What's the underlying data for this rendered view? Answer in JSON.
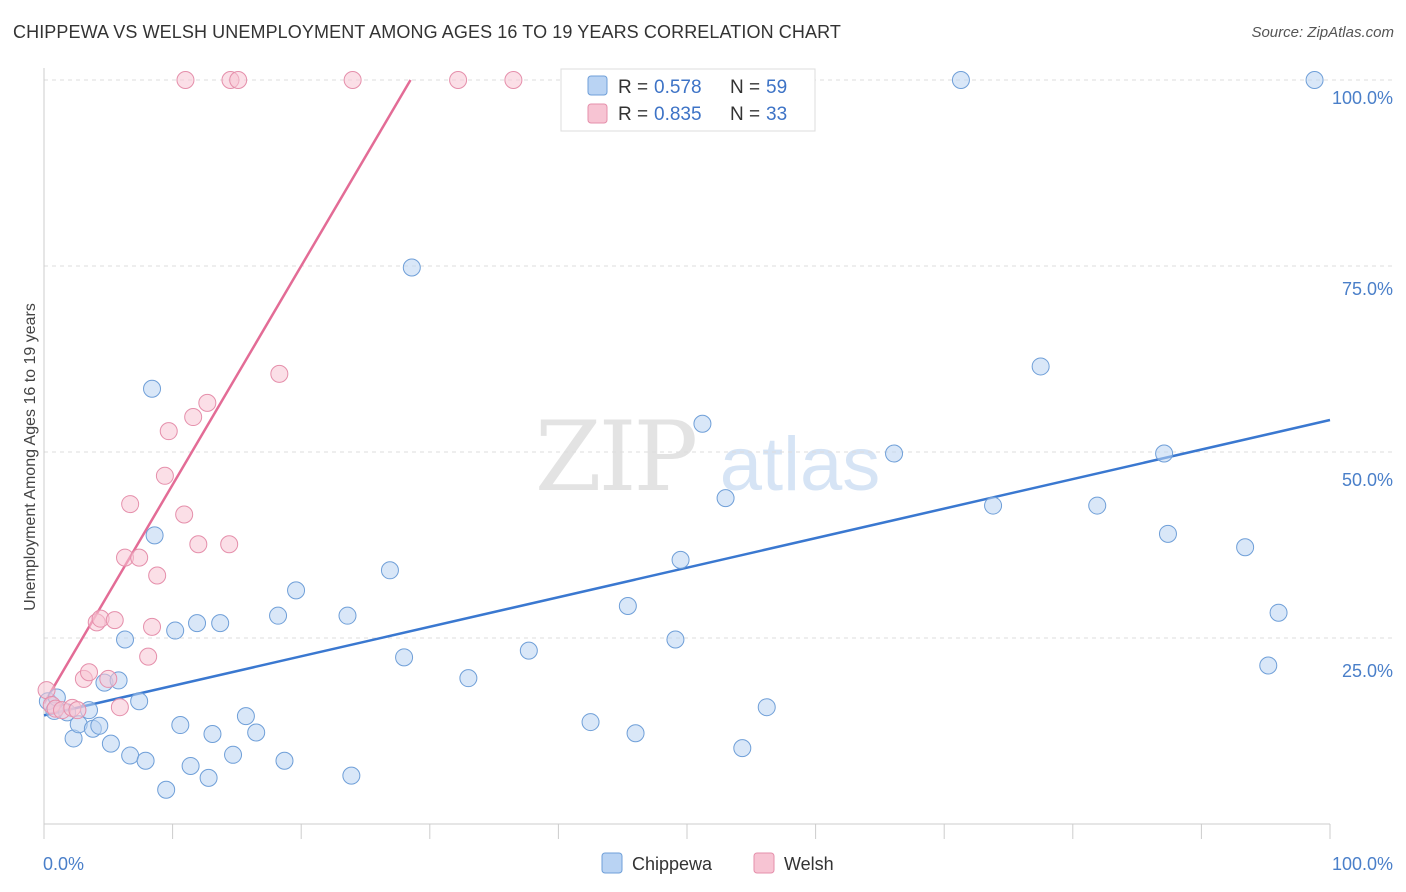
{
  "title": "CHIPPEWA VS WELSH UNEMPLOYMENT AMONG AGES 16 TO 19 YEARS CORRELATION CHART",
  "source": "Source: ZipAtlas.com",
  "colors": {
    "chippewa_fill": "#b9d3f3",
    "chippewa_stroke": "#6f9fd8",
    "chippewa_line": "#3a78d0",
    "welsh_fill": "#f7c4d3",
    "welsh_stroke": "#e58fab",
    "welsh_line": "#e36c96",
    "grid": "#dddddd",
    "axis_text": "#4a7fc9"
  },
  "chart_data": {
    "type": "scatter",
    "xlabel": "",
    "ylabel": "Unemployment Among Ages 16 to 19 years",
    "xlim": [
      0,
      100
    ],
    "ylim": [
      0,
      100
    ],
    "x_tick_labels": [
      "0.0%",
      "100.0%"
    ],
    "y_ticks": [
      25,
      50,
      75,
      100
    ],
    "y_tick_labels": [
      "25.0%",
      "50.0%",
      "75.0%",
      "100.0%"
    ],
    "legend": [
      {
        "name": "Chippewa",
        "r_label": "R =",
        "r": "0.578",
        "n_label": "N =",
        "n": "59"
      },
      {
        "name": "Welsh",
        "r_label": "R =",
        "r": "0.835",
        "n_label": "N =",
        "n": "33"
      }
    ],
    "watermark": "ZIPatlas",
    "series": [
      {
        "name": "Chippewa",
        "trend": [
          [
            0,
            14.6
          ],
          [
            100,
            54.3
          ]
        ],
        "points": [
          [
            0.3,
            16.5
          ],
          [
            0.8,
            15.2
          ],
          [
            1.0,
            17.0
          ],
          [
            1.8,
            15.0
          ],
          [
            2.3,
            11.5
          ],
          [
            2.7,
            13.4
          ],
          [
            3.5,
            15.3
          ],
          [
            3.8,
            12.8
          ],
          [
            4.3,
            13.2
          ],
          [
            4.7,
            19.0
          ],
          [
            5.2,
            10.8
          ],
          [
            5.8,
            19.3
          ],
          [
            6.3,
            24.8
          ],
          [
            6.7,
            9.2
          ],
          [
            7.4,
            16.5
          ],
          [
            7.9,
            8.5
          ],
          [
            8.4,
            58.5
          ],
          [
            8.6,
            38.8
          ],
          [
            9.5,
            4.6
          ],
          [
            10.2,
            26.0
          ],
          [
            10.6,
            13.3
          ],
          [
            11.4,
            7.8
          ],
          [
            11.9,
            27.0
          ],
          [
            12.8,
            6.2
          ],
          [
            13.1,
            12.1
          ],
          [
            13.7,
            27.0
          ],
          [
            14.7,
            9.3
          ],
          [
            15.7,
            14.5
          ],
          [
            16.5,
            12.3
          ],
          [
            18.2,
            28.0
          ],
          [
            18.7,
            8.5
          ],
          [
            19.6,
            31.4
          ],
          [
            23.6,
            28.0
          ],
          [
            23.9,
            6.5
          ],
          [
            26.9,
            34.1
          ],
          [
            28.0,
            22.4
          ],
          [
            28.6,
            74.8
          ],
          [
            33.0,
            19.6
          ],
          [
            37.7,
            23.3
          ],
          [
            42.5,
            13.7
          ],
          [
            45.4,
            29.3
          ],
          [
            46.0,
            12.2
          ],
          [
            49.1,
            24.8
          ],
          [
            49.5,
            35.5
          ],
          [
            51.2,
            53.8
          ],
          [
            53.0,
            43.8
          ],
          [
            54.3,
            10.2
          ],
          [
            56.2,
            15.7
          ],
          [
            66.1,
            49.8
          ],
          [
            71.3,
            100.0
          ],
          [
            73.8,
            42.8
          ],
          [
            77.5,
            61.5
          ],
          [
            81.9,
            42.8
          ],
          [
            87.1,
            49.8
          ],
          [
            87.4,
            39.0
          ],
          [
            93.4,
            37.2
          ],
          [
            95.2,
            21.3
          ],
          [
            96.0,
            28.4
          ],
          [
            98.8,
            100.0
          ]
        ]
      },
      {
        "name": "Welsh",
        "trend": [
          [
            0,
            16.2
          ],
          [
            28.5,
            100.0
          ]
        ],
        "points": [
          [
            0.2,
            18.0
          ],
          [
            0.6,
            16.0
          ],
          [
            0.9,
            15.5
          ],
          [
            1.4,
            15.3
          ],
          [
            2.2,
            15.6
          ],
          [
            2.6,
            15.3
          ],
          [
            3.1,
            19.5
          ],
          [
            3.5,
            20.4
          ],
          [
            4.1,
            27.1
          ],
          [
            4.4,
            27.6
          ],
          [
            5.0,
            19.5
          ],
          [
            5.5,
            27.4
          ],
          [
            5.9,
            15.7
          ],
          [
            6.3,
            35.8
          ],
          [
            6.7,
            43.0
          ],
          [
            7.4,
            35.8
          ],
          [
            8.4,
            26.5
          ],
          [
            8.1,
            22.5
          ],
          [
            8.8,
            33.4
          ],
          [
            9.4,
            46.8
          ],
          [
            9.7,
            52.8
          ],
          [
            10.9,
            41.6
          ],
          [
            11.6,
            54.7
          ],
          [
            12.0,
            37.6
          ],
          [
            12.7,
            56.6
          ],
          [
            14.4,
            37.6
          ],
          [
            18.3,
            60.5
          ],
          [
            11.0,
            100.0
          ],
          [
            14.5,
            100.0
          ],
          [
            15.1,
            100.0
          ],
          [
            24.0,
            100.0
          ],
          [
            32.2,
            100.0
          ],
          [
            36.5,
            100.0
          ]
        ]
      }
    ]
  },
  "bottom_legend": [
    {
      "name": "Chippewa"
    },
    {
      "name": "Welsh"
    }
  ]
}
